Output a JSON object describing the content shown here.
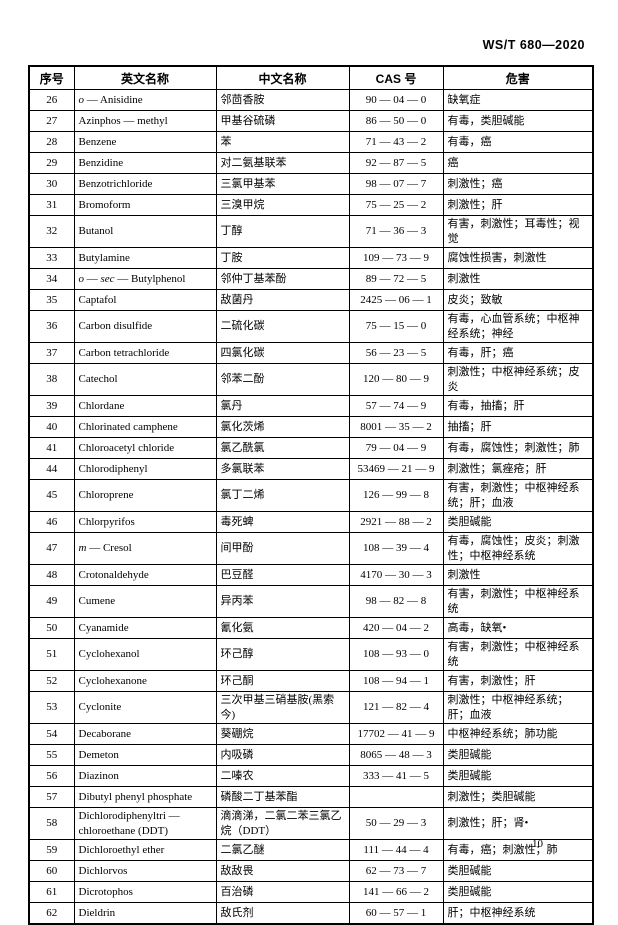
{
  "page": {
    "doc_code": "WS/T 680—2020",
    "page_number": "10"
  },
  "table": {
    "columns": [
      {
        "key": "index",
        "label": "序号"
      },
      {
        "key": "en",
        "label": "英文名称"
      },
      {
        "key": "zh",
        "label": "中文名称"
      },
      {
        "key": "cas",
        "label": "CAS 号"
      },
      {
        "key": "hazard",
        "label": "危害"
      }
    ],
    "rows": [
      {
        "index": "26",
        "en": "*o* — Anisidine",
        "zh": "邻茴香胺",
        "cas": "90 — 04 — 0",
        "hazard": "缺氧症"
      },
      {
        "index": "27",
        "en": "Azinphos — methyl",
        "zh": "甲基谷硫磷",
        "cas": "86 — 50 — 0",
        "hazard": "有毒，类胆碱能"
      },
      {
        "index": "28",
        "en": "Benzene",
        "zh": "苯",
        "cas": "71 — 43 — 2",
        "hazard": "有毒，癌"
      },
      {
        "index": "29",
        "en": "Benzidine",
        "zh": "对二氨基联苯",
        "cas": "92 — 87 — 5",
        "hazard": "癌"
      },
      {
        "index": "30",
        "en": "Benzotrichloride",
        "zh": "三氯甲基苯",
        "cas": "98 — 07 — 7",
        "hazard": "刺激性；癌"
      },
      {
        "index": "31",
        "en": "Bromoform",
        "zh": "三溴甲烷",
        "cas": "75 — 25 — 2",
        "hazard": "刺激性；肝"
      },
      {
        "index": "32",
        "en": "Butanol",
        "zh": "丁醇",
        "cas": "71 — 36 — 3",
        "hazard": "有害，刺激性；耳毒性；视觉"
      },
      {
        "index": "33",
        "en": "Butylamine",
        "zh": "丁胺",
        "cas": "109 — 73 — 9",
        "hazard": "腐蚀性损害，刺激性"
      },
      {
        "index": "34",
        "en": "*o* — *sec* — Butylphenol",
        "zh": "邻仲丁基苯酚",
        "cas": "89 — 72 — 5",
        "hazard": "刺激性"
      },
      {
        "index": "35",
        "en": "Captafol",
        "zh": "敌菌丹",
        "cas": "2425 — 06 — 1",
        "hazard": "皮炎；致敏"
      },
      {
        "index": "36",
        "en": "Carbon disulfide",
        "zh": "二硫化碳",
        "cas": "75 — 15 — 0",
        "hazard": "有毒，心血管系统；中枢神经系统；神经"
      },
      {
        "index": "37",
        "en": "Carbon tetrachloride",
        "zh": "四氯化碳",
        "cas": "56 — 23 — 5",
        "hazard": "有毒，肝；癌"
      },
      {
        "index": "38",
        "en": "Catechol",
        "zh": "邻苯二酚",
        "cas": "120 — 80 — 9",
        "hazard": "刺激性；中枢神经系统；皮炎"
      },
      {
        "index": "39",
        "en": "Chlordane",
        "zh": "氯丹",
        "cas": "57 — 74 — 9",
        "hazard": "有毒，抽搐；肝"
      },
      {
        "index": "40",
        "en": "Chlorinated camphene",
        "zh": "氯化茨烯",
        "cas": "8001 — 35 — 2",
        "hazard": "抽搐；肝"
      },
      {
        "index": "41",
        "en": "Chloroacetyl chloride",
        "zh": "氯乙酰氯",
        "cas": "79 — 04 — 9",
        "hazard": "有毒，腐蚀性；刺激性；肺"
      },
      {
        "index": "44",
        "en": "Chlorodiphenyl",
        "zh": "多氯联苯",
        "cas": "53469 — 21 — 9",
        "hazard": "刺激性；氯痤疮；肝"
      },
      {
        "index": "45",
        "en": "Chloroprene",
        "zh": "氯丁二烯",
        "cas": "126 — 99 — 8",
        "hazard": "有害，刺激性；中枢神经系统；肝；血液"
      },
      {
        "index": "46",
        "en": "Chlorpyrifos",
        "zh": "毒死蜱",
        "cas": "2921 — 88 — 2",
        "hazard": "类胆碱能"
      },
      {
        "index": "47",
        "en": "*m* — Cresol",
        "zh": "间甲酚",
        "cas": "108 — 39 — 4",
        "hazard": "有毒，腐蚀性；皮炎；刺激性；中枢神经系统"
      },
      {
        "index": "48",
        "en": "Crotonaldehyde",
        "zh": "巴豆醛",
        "cas": "4170 — 30 — 3",
        "hazard": "刺激性"
      },
      {
        "index": "49",
        "en": "Cumene",
        "zh": "异丙苯",
        "cas": "98 — 82 — 8",
        "hazard": "有害，刺激性；中枢神经系统"
      },
      {
        "index": "50",
        "en": "Cyanamide",
        "zh": "氰化氨",
        "cas": "420 — 04 — 2",
        "hazard": "高毒，缺氧•"
      },
      {
        "index": "51",
        "en": "Cyclohexanol",
        "zh": "环己醇",
        "cas": "108 — 93 — 0",
        "hazard": "有害，刺激性；中枢神经系统"
      },
      {
        "index": "52",
        "en": "Cyclohexanone",
        "zh": "环己酮",
        "cas": "108 — 94 — 1",
        "hazard": "有害，刺激性；肝"
      },
      {
        "index": "53",
        "en": "Cyclonite",
        "zh": "三次甲基三硝基胺(黑索今)",
        "cas": "121 — 82 — 4",
        "hazard": "刺激性；中枢神经系统；肝；血液"
      },
      {
        "index": "54",
        "en": "Decaborane",
        "zh": "葵硼烷",
        "cas": "17702 — 41 — 9",
        "hazard": "中枢神经系统；肺功能"
      },
      {
        "index": "55",
        "en": "Demeton",
        "zh": "内吸磷",
        "cas": "8065 — 48 — 3",
        "hazard": "类胆碱能"
      },
      {
        "index": "56",
        "en": "Diazinon",
        "zh": "二嗪农",
        "cas": "333 — 41 — 5",
        "hazard": "类胆碱能"
      },
      {
        "index": "57",
        "en": "Dibutyl phenyl phosphate",
        "zh": "磷酸二丁基苯酯",
        "cas": "",
        "hazard": "刺激性；类胆碱能"
      },
      {
        "index": "58",
        "en": "Dichlorodiphenyltri — chloroethane (DDT)",
        "zh": "滴滴涕，二氯二苯三氯乙烷（DDT）",
        "cas": "50 — 29 — 3",
        "hazard": "刺激性；肝；肾•"
      },
      {
        "index": "59",
        "en": "Dichloroethyl ether",
        "zh": "二氯乙醚",
        "cas": "111 — 44 — 4",
        "hazard": "有毒，癌；刺激性；肺"
      },
      {
        "index": "60",
        "en": "Dichlorvos",
        "zh": "敌敌畏",
        "cas": "62 — 73 — 7",
        "hazard": "类胆碱能"
      },
      {
        "index": "61",
        "en": "Dicrotophos",
        "zh": "百治磷",
        "cas": "141 — 66 — 2",
        "hazard": "类胆碱能"
      },
      {
        "index": "62",
        "en": "Dieldrin",
        "zh": "敌氏剂",
        "cas": "60 — 57 — 1",
        "hazard": "肝；中枢神经系统"
      }
    ]
  }
}
